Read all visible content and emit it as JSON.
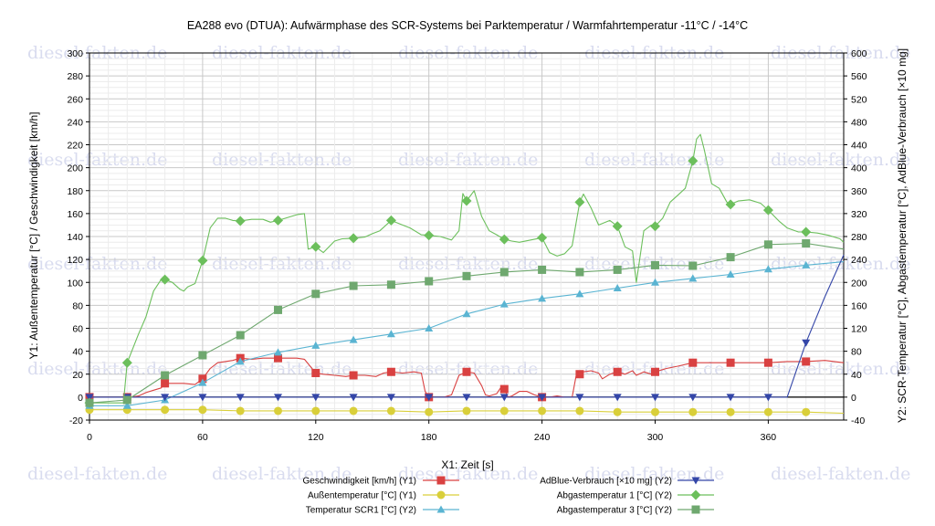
{
  "chart_data": {
    "type": "line",
    "title": "EA288 evo (DTUA): Aufwärmphase des SCR-Systems bei Parktemperatur / Warmfahrtemperatur -11°C / -14°C",
    "xlabel": "X1: Zeit [s]",
    "ylabel_left": "Y1: Außentemperatur [°C] / Geschwindigkeit [km/h]",
    "ylabel_right": "Y2: SCR-Temperatur [°C], Abgastemperatur [°C], AdBlue-Verbrauch [×10 mg]",
    "xlim": [
      0,
      400
    ],
    "ylim_left": [
      -20,
      300
    ],
    "ylim_right": [
      -40,
      600
    ],
    "xticks": [
      0,
      60,
      120,
      180,
      240,
      300,
      360
    ],
    "yticks_left": [
      -20,
      0,
      20,
      40,
      60,
      80,
      100,
      120,
      140,
      160,
      180,
      200,
      220,
      240,
      260,
      280,
      300
    ],
    "yticks_right": [
      -40,
      0,
      40,
      80,
      120,
      160,
      200,
      240,
      280,
      320,
      360,
      400,
      440,
      480,
      520,
      560,
      600
    ],
    "grid": true,
    "legend_position": "bottom",
    "watermark": "diesel-fakten.de",
    "series": [
      {
        "name": "Geschwindigkeit [km/h] (Y1)",
        "axis": "left",
        "color": "#d94141",
        "marker": "square",
        "x": [
          0,
          20,
          22,
          26,
          30,
          34,
          38,
          40,
          44,
          50,
          56,
          60,
          64,
          68,
          72,
          76,
          80,
          86,
          92,
          96,
          100,
          104,
          110,
          114,
          120,
          124,
          130,
          136,
          140,
          146,
          152,
          156,
          160,
          166,
          172,
          176,
          178,
          180,
          188,
          192,
          196,
          200,
          204,
          208,
          210,
          212,
          216,
          218,
          220,
          222,
          224,
          228,
          232,
          236,
          240,
          244,
          248,
          252,
          256,
          258,
          262,
          266,
          270,
          272,
          276,
          280,
          284,
          288,
          290,
          294,
          298,
          300,
          306,
          312,
          320,
          330,
          340,
          350,
          360,
          370,
          380,
          390,
          400
        ],
        "y": [
          0,
          0,
          0,
          1,
          4,
          6,
          8,
          12,
          12,
          12,
          11,
          16,
          25,
          30,
          31,
          32,
          34,
          33,
          34,
          34,
          34,
          34,
          34,
          33,
          21,
          20,
          19,
          18,
          19,
          19,
          18,
          21,
          22,
          21,
          22,
          21,
          5,
          0,
          0,
          2,
          19,
          22,
          21,
          10,
          2,
          1,
          3,
          8,
          7,
          0,
          1,
          5,
          5,
          2,
          0,
          0,
          1,
          0,
          0,
          18,
          22,
          23,
          21,
          16,
          20,
          22,
          20,
          23,
          19,
          22,
          20,
          22,
          25,
          27,
          30,
          30,
          30,
          30,
          30,
          31,
          31,
          32,
          30
        ]
      },
      {
        "name": "Außentemperatur [°C] (Y1)",
        "axis": "left",
        "color": "#d9cf3a",
        "marker": "circle",
        "x": [
          0,
          20,
          40,
          60,
          80,
          100,
          120,
          140,
          160,
          180,
          200,
          220,
          240,
          260,
          280,
          300,
          320,
          340,
          360,
          380,
          400
        ],
        "y": [
          -11,
          -11,
          -11,
          -11,
          -12,
          -12,
          -12,
          -12,
          -12,
          -13,
          -12,
          -12,
          -12,
          -12,
          -13,
          -13,
          -13,
          -13,
          -13,
          -13,
          -14
        ]
      },
      {
        "name": "Temperatur SCR1 [°C] (Y2)",
        "axis": "right",
        "color": "#5ab4d2",
        "marker": "triangle-up",
        "x": [
          0,
          20,
          40,
          60,
          80,
          100,
          120,
          140,
          160,
          180,
          200,
          220,
          240,
          260,
          280,
          300,
          320,
          340,
          360,
          380,
          400
        ],
        "y": [
          -15,
          -15,
          -5,
          25,
          62,
          78,
          90,
          100,
          110,
          120,
          145,
          162,
          172,
          180,
          190,
          200,
          207,
          214,
          223,
          230,
          236
        ]
      },
      {
        "name": "AdBlue-Verbrauch [×10 mg] (Y2)",
        "axis": "right",
        "color": "#3446a8",
        "marker": "triangle-down",
        "x": [
          0,
          20,
          40,
          60,
          80,
          100,
          120,
          140,
          160,
          180,
          200,
          220,
          240,
          260,
          280,
          300,
          320,
          340,
          360,
          370,
          380,
          390,
          400
        ],
        "y": [
          0,
          0,
          0,
          0,
          0,
          0,
          0,
          0,
          0,
          0,
          0,
          0,
          0,
          0,
          0,
          0,
          0,
          0,
          0,
          0,
          95,
          175,
          248
        ]
      },
      {
        "name": "Abgastemperatur 1 [°C] (Y2)",
        "axis": "right",
        "color": "#6cbf5c",
        "marker": "diamond",
        "x": [
          0,
          18,
          20,
          26,
          30,
          34,
          38,
          40,
          44,
          48,
          50,
          52,
          56,
          60,
          64,
          68,
          72,
          76,
          80,
          86,
          92,
          96,
          100,
          106,
          110,
          114,
          116,
          120,
          124,
          130,
          134,
          140,
          146,
          150,
          154,
          160,
          166,
          170,
          176,
          180,
          186,
          192,
          196,
          198,
          200,
          204,
          208,
          212,
          216,
          220,
          224,
          228,
          234,
          240,
          244,
          248,
          252,
          256,
          260,
          262,
          266,
          270,
          276,
          280,
          284,
          288,
          290,
          294,
          298,
          300,
          304,
          308,
          312,
          316,
          320,
          322,
          324,
          326,
          330,
          334,
          338,
          340,
          344,
          350,
          356,
          360,
          366,
          370,
          376,
          380,
          386,
          392,
          398,
          400
        ],
        "y": [
          -10,
          -10,
          60,
          110,
          140,
          185,
          205,
          205,
          200,
          188,
          185,
          192,
          198,
          238,
          295,
          312,
          312,
          308,
          307,
          310,
          310,
          305,
          308,
          314,
          318,
          320,
          258,
          262,
          252,
          272,
          276,
          277,
          279,
          285,
          290,
          308,
          300,
          295,
          283,
          282,
          280,
          274,
          290,
          355,
          342,
          360,
          315,
          290,
          283,
          275,
          272,
          270,
          274,
          278,
          252,
          246,
          250,
          264,
          340,
          354,
          330,
          300,
          308,
          298,
          262,
          255,
          200,
          290,
          300,
          298,
          312,
          340,
          352,
          364,
          412,
          450,
          458,
          432,
          372,
          364,
          340,
          336,
          342,
          344,
          338,
          326,
          306,
          295,
          288,
          288,
          286,
          282,
          276,
          270
        ]
      },
      {
        "name": "Abgastemperatur 3 [°C] (Y2)",
        "axis": "right",
        "color": "#6fa86f",
        "marker": "square",
        "x": [
          0,
          20,
          40,
          60,
          80,
          100,
          120,
          140,
          160,
          180,
          200,
          220,
          240,
          260,
          280,
          300,
          320,
          340,
          360,
          380,
          400
        ],
        "y": [
          -10,
          -5,
          38,
          73,
          108,
          152,
          180,
          194,
          196,
          202,
          211,
          218,
          222,
          218,
          222,
          230,
          229,
          244,
          266,
          268,
          258
        ]
      }
    ]
  }
}
